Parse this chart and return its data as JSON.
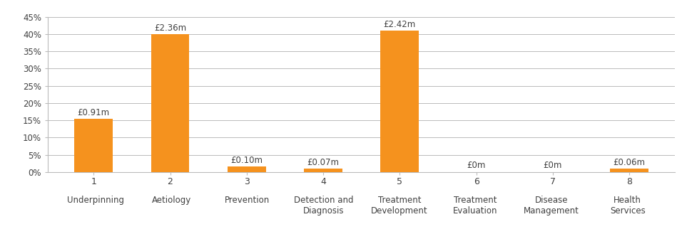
{
  "categories_line1": [
    "1",
    "2",
    "3",
    "4",
    "5",
    "6",
    "7",
    "8"
  ],
  "categories_line2": [
    "Underpinning",
    "Aetiology",
    "Prevention",
    "Detection and\nDiagnosis",
    "Treatment\nDevelopment",
    "Treatment\nEvaluation",
    "Disease\nManagement",
    "Health\nServices"
  ],
  "values": [
    15.4,
    40.0,
    1.7,
    1.0,
    41.0,
    0.0,
    0.0,
    1.0
  ],
  "labels": [
    "£0.91m",
    "£2.36m",
    "£0.10m",
    "£0.07m",
    "£2.42m",
    "£0m",
    "£0m",
    "£0.06m"
  ],
  "label_offset": [
    0,
    0,
    0,
    0,
    0,
    0,
    0,
    0
  ],
  "bar_color": "#F5921E",
  "ylim": [
    0,
    45
  ],
  "yticks": [
    0,
    5,
    10,
    15,
    20,
    25,
    30,
    35,
    40,
    45
  ],
  "grid_color": "#BBBBBB",
  "text_color": "#404040",
  "background_color": "#FFFFFF",
  "bar_width": 0.5,
  "label_fontsize": 8.5,
  "tick_fontsize": 8.5,
  "num_fontsize": 9,
  "figsize": [
    9.56,
    3.36
  ],
  "dpi": 100
}
